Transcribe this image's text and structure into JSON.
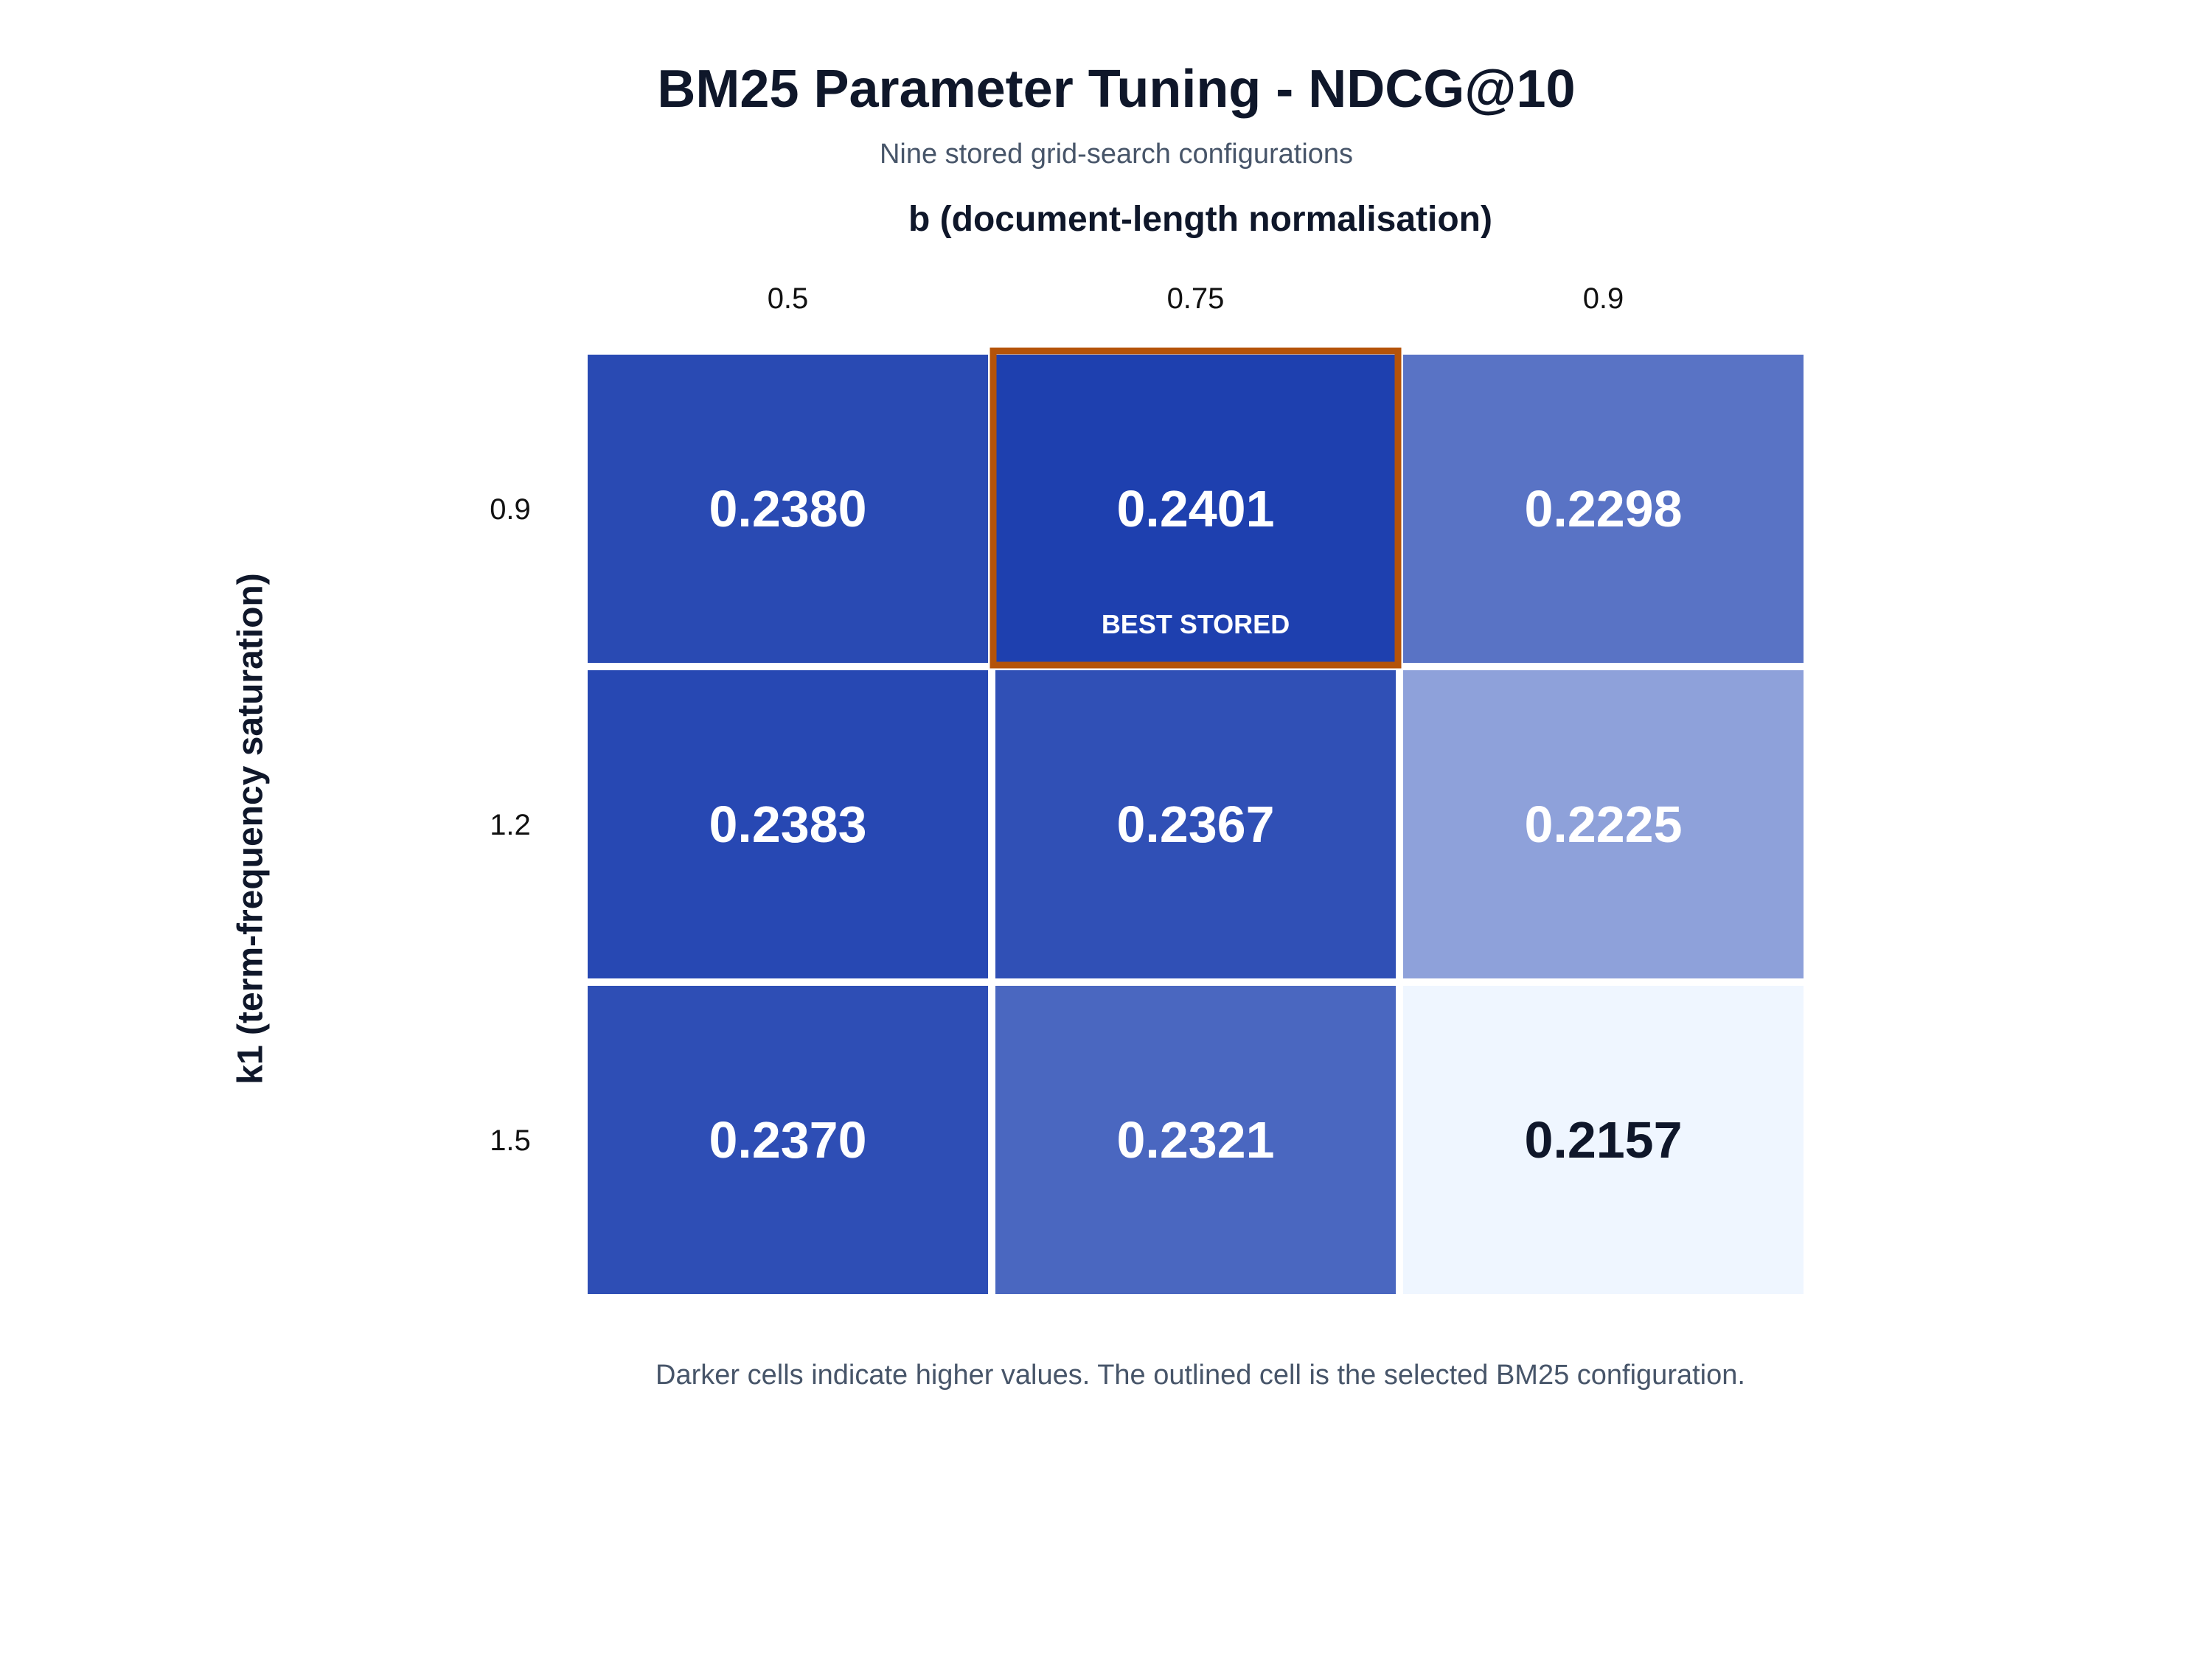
{
  "chart_data": {
    "type": "heatmap",
    "title": "BM25 Parameter Tuning - NDCG@10",
    "subtitle": "Nine stored grid-search configurations",
    "xlabel": "b (document-length normalisation)",
    "ylabel": "k1 (term-frequency saturation)",
    "x_categories": [
      "0.5",
      "0.75",
      "0.9"
    ],
    "y_categories": [
      "0.9",
      "1.2",
      "1.5"
    ],
    "values": [
      [
        0.238,
        0.2401,
        0.2298
      ],
      [
        0.2383,
        0.2367,
        0.2225
      ],
      [
        0.237,
        0.2321,
        0.2157
      ]
    ],
    "value_labels": [
      [
        "0.2380",
        "0.2401",
        "0.2298"
      ],
      [
        "0.2383",
        "0.2367",
        "0.2225"
      ],
      [
        "0.2370",
        "0.2321",
        "0.2157"
      ]
    ],
    "highlight": {
      "row": 0,
      "col": 1,
      "label": "BEST STORED"
    },
    "footnote": "Darker cells indicate higher values. The outlined cell is the selected BM25 configuration.",
    "colors": {
      "low": "#eff6ff",
      "high": "#1e40af",
      "highlight_outline": "#b45309",
      "dark_text": "#0f172a",
      "light_text": "#ffffff"
    }
  }
}
